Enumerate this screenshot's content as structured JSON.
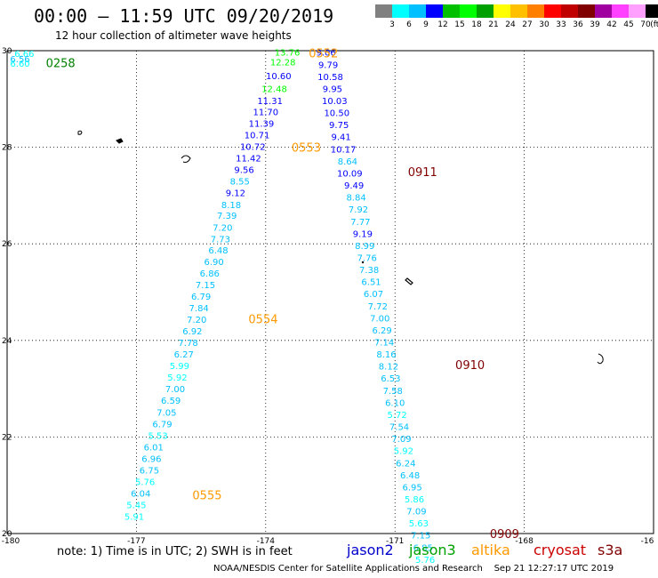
{
  "header": {
    "title": "00:00 – 11:59 UTC 09/20/2019",
    "subtitle": "12 hour collection of altimeter wave heights"
  },
  "colorbar": {
    "colors": [
      "#808080",
      "#00ffff",
      "#00c0ff",
      "#0000ff",
      "#00c000",
      "#00ff00",
      "#00a000",
      "#ffff00",
      "#ffc000",
      "#ff8000",
      "#ff0000",
      "#c00000",
      "#800000",
      "#a000a0",
      "#ff40ff",
      "#ffa0ff",
      "#000000"
    ],
    "labels": [
      "3",
      "6",
      "9",
      "12",
      "15",
      "18",
      "21",
      "24",
      "27",
      "30",
      "33",
      "36",
      "39",
      "42",
      "45",
      "70",
      "(ft)"
    ]
  },
  "map": {
    "lon_labels": [
      "-180",
      "-177",
      "-174",
      "-171",
      "-168",
      "-16"
    ],
    "lat_labels": [
      "30",
      "28",
      "26",
      "24",
      "22",
      "20"
    ],
    "lon_range": [
      -180,
      -165
    ],
    "lat_range": [
      20,
      30
    ]
  },
  "passes": [
    {
      "name": "pass-0258",
      "label": "0258",
      "color": "#008000",
      "lon": -179.1,
      "lat": 29.75
    },
    {
      "name": "pass-0552",
      "label": "0552",
      "color": "#ff9900",
      "lon": -173.0,
      "lat": 29.95
    },
    {
      "name": "pass-0553",
      "label": "0553",
      "color": "#ff9900",
      "lon": -173.4,
      "lat": 28.0
    },
    {
      "name": "pass-0554",
      "label": "0554",
      "color": "#ff9900",
      "lon": -174.4,
      "lat": 24.45
    },
    {
      "name": "pass-0555",
      "label": "0555",
      "color": "#ff9900",
      "lon": -175.7,
      "lat": 20.8
    },
    {
      "name": "pass-0911",
      "label": "0911",
      "color": "#800000",
      "lon": -170.7,
      "lat": 27.5
    },
    {
      "name": "pass-0910",
      "label": "0910",
      "color": "#800000",
      "lon": -169.6,
      "lat": 23.5
    },
    {
      "name": "pass-0909",
      "label": "0909",
      "color": "#800000",
      "lon": -168.8,
      "lat": 20.0
    }
  ],
  "tracks": [
    {
      "name": "track-0258",
      "points": [
        {
          "lon": -179.6,
          "lat": 29.93,
          "v": "6.66",
          "c": "#00ffff"
        },
        {
          "lon": -179.7,
          "lat": 29.82,
          "v": "6.56",
          "c": "#00c0ff"
        },
        {
          "lon": -179.7,
          "lat": 29.72,
          "v": "6.60",
          "c": "#00ffff"
        }
      ]
    },
    {
      "name": "track-0552-0555",
      "points": [
        {
          "lon": -173.5,
          "lat": 29.95,
          "v": "13.76",
          "c": "#00ff00"
        },
        {
          "lon": -173.6,
          "lat": 29.75,
          "v": "12.28",
          "c": "#00ff00"
        },
        {
          "lon": -173.7,
          "lat": 29.47,
          "v": "10.60",
          "c": "#0000ff"
        },
        {
          "lon": -173.8,
          "lat": 29.2,
          "v": "12.48",
          "c": "#00ff00"
        },
        {
          "lon": -173.9,
          "lat": 28.95,
          "v": "11.31",
          "c": "#0000ff"
        },
        {
          "lon": -174.0,
          "lat": 28.72,
          "v": "11.70",
          "c": "#0000ff"
        },
        {
          "lon": -174.1,
          "lat": 28.48,
          "v": "11.39",
          "c": "#0000ff"
        },
        {
          "lon": -174.2,
          "lat": 28.24,
          "v": "10.71",
          "c": "#0000ff"
        },
        {
          "lon": -174.3,
          "lat": 28.0,
          "v": "10.72",
          "c": "#0000ff"
        },
        {
          "lon": -174.4,
          "lat": 27.76,
          "v": "11.42",
          "c": "#0000ff"
        },
        {
          "lon": -174.5,
          "lat": 27.52,
          "v": "9.56",
          "c": "#0000ff"
        },
        {
          "lon": -174.6,
          "lat": 27.28,
          "v": "8.55",
          "c": "#00c0ff"
        },
        {
          "lon": -174.7,
          "lat": 27.04,
          "v": "9.12",
          "c": "#0000ff"
        },
        {
          "lon": -174.8,
          "lat": 26.8,
          "v": "8.18",
          "c": "#00c0ff"
        },
        {
          "lon": -174.9,
          "lat": 26.57,
          "v": "7.39",
          "c": "#00c0ff"
        },
        {
          "lon": -175.0,
          "lat": 26.33,
          "v": "7.20",
          "c": "#00c0ff"
        },
        {
          "lon": -175.05,
          "lat": 26.09,
          "v": "7.73",
          "c": "#00c0ff"
        },
        {
          "lon": -175.1,
          "lat": 25.86,
          "v": "6.48",
          "c": "#00c0ff"
        },
        {
          "lon": -175.2,
          "lat": 25.62,
          "v": "6.90",
          "c": "#00c0ff"
        },
        {
          "lon": -175.3,
          "lat": 25.38,
          "v": "6.86",
          "c": "#00c0ff"
        },
        {
          "lon": -175.4,
          "lat": 25.14,
          "v": "7.15",
          "c": "#00c0ff"
        },
        {
          "lon": -175.5,
          "lat": 24.9,
          "v": "6.79",
          "c": "#00c0ff"
        },
        {
          "lon": -175.55,
          "lat": 24.66,
          "v": "7.84",
          "c": "#00c0ff"
        },
        {
          "lon": -175.6,
          "lat": 24.42,
          "v": "7.20",
          "c": "#00c0ff"
        },
        {
          "lon": -175.7,
          "lat": 24.18,
          "v": "6.92",
          "c": "#00c0ff"
        },
        {
          "lon": -175.8,
          "lat": 23.94,
          "v": "7.78",
          "c": "#00c0ff"
        },
        {
          "lon": -175.9,
          "lat": 23.7,
          "v": "6.27",
          "c": "#00c0ff"
        },
        {
          "lon": -176.0,
          "lat": 23.46,
          "v": "5.99",
          "c": "#00ffff"
        },
        {
          "lon": -176.05,
          "lat": 23.22,
          "v": "5.92",
          "c": "#00ffff"
        },
        {
          "lon": -176.1,
          "lat": 22.98,
          "v": "7.00",
          "c": "#00c0ff"
        },
        {
          "lon": -176.2,
          "lat": 22.74,
          "v": "6.59",
          "c": "#00c0ff"
        },
        {
          "lon": -176.3,
          "lat": 22.5,
          "v": "7.05",
          "c": "#00c0ff"
        },
        {
          "lon": -176.4,
          "lat": 22.26,
          "v": "6.79",
          "c": "#00c0ff"
        },
        {
          "lon": -176.5,
          "lat": 22.02,
          "v": "5.53",
          "c": "#00ffff"
        },
        {
          "lon": -176.6,
          "lat": 21.78,
          "v": "6.01",
          "c": "#00c0ff"
        },
        {
          "lon": -176.65,
          "lat": 21.54,
          "v": "6.96",
          "c": "#00c0ff"
        },
        {
          "lon": -176.7,
          "lat": 21.3,
          "v": "6.75",
          "c": "#00c0ff"
        },
        {
          "lon": -176.8,
          "lat": 21.06,
          "v": "5.76",
          "c": "#00ffff"
        },
        {
          "lon": -176.9,
          "lat": 20.82,
          "v": "6.04",
          "c": "#00c0ff"
        },
        {
          "lon": -177.0,
          "lat": 20.58,
          "v": "5.45",
          "c": "#00ffff"
        },
        {
          "lon": -177.05,
          "lat": 20.34,
          "v": "5.91",
          "c": "#00ffff"
        }
      ]
    },
    {
      "name": "track-0909-0911",
      "points": [
        {
          "lon": -172.6,
          "lat": 29.95,
          "v": "9.06",
          "c": "#0000ff"
        },
        {
          "lon": -172.55,
          "lat": 29.7,
          "v": "9.79",
          "c": "#0000ff"
        },
        {
          "lon": -172.5,
          "lat": 29.45,
          "v": "10.58",
          "c": "#0000ff"
        },
        {
          "lon": -172.45,
          "lat": 29.2,
          "v": "9.95",
          "c": "#0000ff"
        },
        {
          "lon": -172.4,
          "lat": 28.95,
          "v": "10.03",
          "c": "#0000ff"
        },
        {
          "lon": -172.35,
          "lat": 28.7,
          "v": "10.50",
          "c": "#0000ff"
        },
        {
          "lon": -172.3,
          "lat": 28.45,
          "v": "9.75",
          "c": "#0000ff"
        },
        {
          "lon": -172.25,
          "lat": 28.2,
          "v": "9.41",
          "c": "#0000ff"
        },
        {
          "lon": -172.2,
          "lat": 27.95,
          "v": "10.17",
          "c": "#0000ff"
        },
        {
          "lon": -172.1,
          "lat": 27.7,
          "v": "8.64",
          "c": "#00c0ff"
        },
        {
          "lon": -172.05,
          "lat": 27.45,
          "v": "10.09",
          "c": "#0000ff"
        },
        {
          "lon": -171.95,
          "lat": 27.2,
          "v": "9.49",
          "c": "#0000ff"
        },
        {
          "lon": -171.9,
          "lat": 26.95,
          "v": "8.84",
          "c": "#00c0ff"
        },
        {
          "lon": -171.85,
          "lat": 26.7,
          "v": "7.92",
          "c": "#00c0ff"
        },
        {
          "lon": -171.8,
          "lat": 26.45,
          "v": "7.77",
          "c": "#00c0ff"
        },
        {
          "lon": -171.75,
          "lat": 26.2,
          "v": "9.19",
          "c": "#0000ff"
        },
        {
          "lon": -171.7,
          "lat": 25.95,
          "v": "8.99",
          "c": "#00c0ff"
        },
        {
          "lon": -171.65,
          "lat": 25.7,
          "v": "7.76",
          "c": "#00c0ff"
        },
        {
          "lon": -171.6,
          "lat": 25.45,
          "v": "7.38",
          "c": "#00c0ff"
        },
        {
          "lon": -171.55,
          "lat": 25.2,
          "v": "6.51",
          "c": "#00c0ff"
        },
        {
          "lon": -171.5,
          "lat": 24.95,
          "v": "6.07",
          "c": "#00c0ff"
        },
        {
          "lon": -171.4,
          "lat": 24.7,
          "v": "7.72",
          "c": "#00c0ff"
        },
        {
          "lon": -171.35,
          "lat": 24.45,
          "v": "7.00",
          "c": "#00c0ff"
        },
        {
          "lon": -171.3,
          "lat": 24.2,
          "v": "6.29",
          "c": "#00c0ff"
        },
        {
          "lon": -171.25,
          "lat": 23.95,
          "v": "7.14",
          "c": "#00c0ff"
        },
        {
          "lon": -171.2,
          "lat": 23.7,
          "v": "8.16",
          "c": "#00c0ff"
        },
        {
          "lon": -171.15,
          "lat": 23.45,
          "v": "8.12",
          "c": "#00c0ff"
        },
        {
          "lon": -171.1,
          "lat": 23.2,
          "v": "6.53",
          "c": "#00c0ff"
        },
        {
          "lon": -171.05,
          "lat": 22.95,
          "v": "7.58",
          "c": "#00c0ff"
        },
        {
          "lon": -171.0,
          "lat": 22.7,
          "v": "6.10",
          "c": "#00c0ff"
        },
        {
          "lon": -170.95,
          "lat": 22.45,
          "v": "5.72",
          "c": "#00ffff"
        },
        {
          "lon": -170.9,
          "lat": 22.2,
          "v": "7.54",
          "c": "#00c0ff"
        },
        {
          "lon": -170.85,
          "lat": 21.95,
          "v": "7.09",
          "c": "#00c0ff"
        },
        {
          "lon": -170.8,
          "lat": 21.7,
          "v": "5.92",
          "c": "#00ffff"
        },
        {
          "lon": -170.75,
          "lat": 21.45,
          "v": "6.24",
          "c": "#00c0ff"
        },
        {
          "lon": -170.65,
          "lat": 21.2,
          "v": "6.48",
          "c": "#00c0ff"
        },
        {
          "lon": -170.6,
          "lat": 20.95,
          "v": "6.95",
          "c": "#00c0ff"
        },
        {
          "lon": -170.55,
          "lat": 20.7,
          "v": "5.86",
          "c": "#00ffff"
        },
        {
          "lon": -170.5,
          "lat": 20.45,
          "v": "7.09",
          "c": "#00c0ff"
        },
        {
          "lon": -170.45,
          "lat": 20.2,
          "v": "5.63",
          "c": "#00ffff"
        },
        {
          "lon": -170.4,
          "lat": 19.95,
          "v": "7.15",
          "c": "#00c0ff"
        },
        {
          "lon": -170.35,
          "lat": 19.7,
          "v": "6.85",
          "c": "#00c0ff"
        },
        {
          "lon": -170.3,
          "lat": 19.45,
          "v": "5.76",
          "c": "#00ffff"
        }
      ]
    }
  ],
  "footer": {
    "note": "note:  1) Time is in UTC; 2) SWH is in feet",
    "credit": "NOAA/NESDIS Center for Satellite Applications and Research",
    "timestamp": "Sep 21 12:27:17 UTC 2019",
    "satellites": [
      {
        "name": "jason2",
        "color": "#0000cc"
      },
      {
        "name": "jason3",
        "color": "#00a000"
      },
      {
        "name": "altika",
        "color": "#ff9900"
      },
      {
        "name": "cryosat",
        "color": "#cc0000"
      },
      {
        "name": "s3a",
        "color": "#800000"
      }
    ]
  }
}
